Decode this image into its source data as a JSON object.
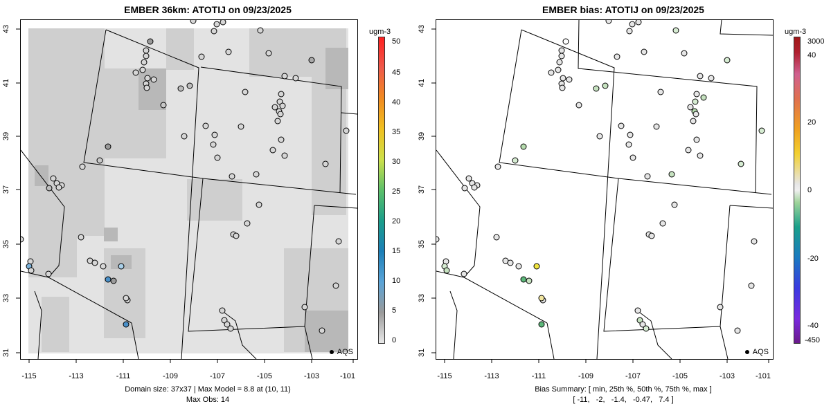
{
  "left": {
    "title": "EMBER 36km: ATOTIJ on 09/23/2025",
    "cbar_unit": "ugm-3",
    "cbar_ticks": [
      "0",
      "5",
      "10",
      "15",
      "20",
      "25",
      "30",
      "35",
      "40",
      "45",
      "50"
    ],
    "legend_label": "AQS",
    "footer_line1": "Domain size: 37x37 | Max Model = 8.8 at (10, 11)",
    "footer_line2": "Max Obs: 14"
  },
  "right": {
    "title": "EMBER bias: ATOTIJ on 09/23/2025",
    "cbar_unit": "ugm-3",
    "cbar_ticks": [
      "-450",
      "-40",
      "-20",
      "0",
      "20",
      "40",
      "3000"
    ],
    "legend_label": "AQS",
    "footer_line1": "Bias Summary: [ min, 25th %, 50th %, 75th %, max ]",
    "footer_line2": "[ -11,   -2,   -1.4,   -0.47,   7.4 ]"
  },
  "axes": {
    "x_ticks": [
      "-115",
      "-113",
      "-111",
      "-109",
      "-107",
      "-105",
      "-103",
      "-101"
    ],
    "y_ticks": [
      "31",
      "33",
      "35",
      "37",
      "39",
      "41",
      "43"
    ]
  },
  "colors": {
    "model_light": "#e6e6e6",
    "model_mid": "#cfcfcf",
    "model_dark": "#a9a9a9",
    "obs_blue": "#4a90c8",
    "bias_green": "#9fd49a",
    "bias_yellow": "#f2e640"
  }
}
